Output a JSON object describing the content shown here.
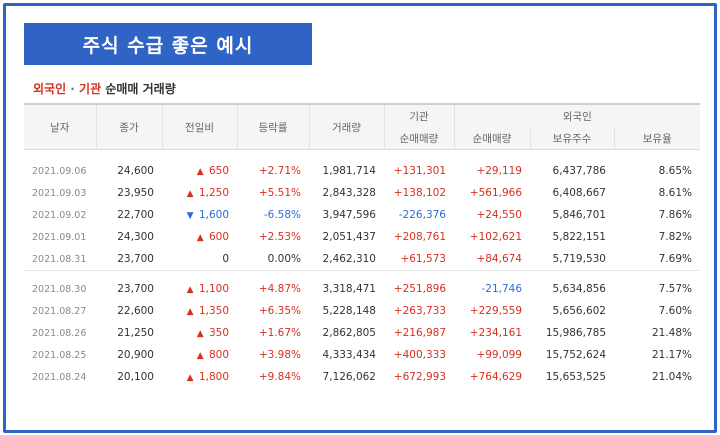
{
  "banner": {
    "title": "주식 수급 좋은 예시"
  },
  "subtitle": {
    "foreigner": "외국인",
    "separator": " · ",
    "institution": "기관",
    "rest": " 순매매 거래량"
  },
  "table": {
    "headers": {
      "date": "날자",
      "close": "종가",
      "change": "전일비",
      "rate": "등락률",
      "volume": "거래량",
      "institution": "기관",
      "foreigner": "외국인",
      "inst_net": "순매매량",
      "for_net": "순매매량",
      "for_hold": "보유주수",
      "for_ratio": "보유율"
    },
    "group1": [
      {
        "date": "2021.09.06",
        "close": "24,600",
        "dir": "up",
        "change": "650",
        "rate": "+2.71%",
        "volume": "1,981,714",
        "inst": "+131,301",
        "inst_dir": "up",
        "for": "+29,119",
        "for_dir": "up",
        "hold": "6,437,786",
        "ratio": "8.65%"
      },
      {
        "date": "2021.09.03",
        "close": "23,950",
        "dir": "up",
        "change": "1,250",
        "rate": "+5.51%",
        "volume": "2,843,328",
        "inst": "+138,102",
        "inst_dir": "up",
        "for": "+561,966",
        "for_dir": "up",
        "hold": "6,408,667",
        "ratio": "8.61%"
      },
      {
        "date": "2021.09.02",
        "close": "22,700",
        "dir": "down",
        "change": "1,600",
        "rate": "-6.58%",
        "volume": "3,947,596",
        "inst": "-226,376",
        "inst_dir": "down",
        "for": "+24,550",
        "for_dir": "up",
        "hold": "5,846,701",
        "ratio": "7.86%"
      },
      {
        "date": "2021.09.01",
        "close": "24,300",
        "dir": "up",
        "change": "600",
        "rate": "+2.53%",
        "volume": "2,051,437",
        "inst": "+208,761",
        "inst_dir": "up",
        "for": "+102,621",
        "for_dir": "up",
        "hold": "5,822,151",
        "ratio": "7.82%"
      },
      {
        "date": "2021.08.31",
        "close": "23,700",
        "dir": "none",
        "change": "0",
        "rate": "0.00%",
        "volume": "2,462,310",
        "inst": "+61,573",
        "inst_dir": "up",
        "for": "+84,674",
        "for_dir": "up",
        "hold": "5,719,530",
        "ratio": "7.69%"
      }
    ],
    "group2": [
      {
        "date": "2021.08.30",
        "close": "23,700",
        "dir": "up",
        "change": "1,100",
        "rate": "+4.87%",
        "volume": "3,318,471",
        "inst": "+251,896",
        "inst_dir": "up",
        "for": "-21,746",
        "for_dir": "down",
        "hold": "5,634,856",
        "ratio": "7.57%"
      },
      {
        "date": "2021.08.27",
        "close": "22,600",
        "dir": "up",
        "change": "1,350",
        "rate": "+6.35%",
        "volume": "5,228,148",
        "inst": "+263,733",
        "inst_dir": "up",
        "for": "+229,559",
        "for_dir": "up",
        "hold": "5,656,602",
        "ratio": "7.60%"
      },
      {
        "date": "2021.08.26",
        "close": "21,250",
        "dir": "up",
        "change": "350",
        "rate": "+1.67%",
        "volume": "2,862,805",
        "inst": "+216,987",
        "inst_dir": "up",
        "for": "+234,161",
        "for_dir": "up",
        "hold": "15,986,785",
        "ratio": "21.48%"
      },
      {
        "date": "2021.08.25",
        "close": "20,900",
        "dir": "up",
        "change": "800",
        "rate": "+3.98%",
        "volume": "4,333,434",
        "inst": "+400,333",
        "inst_dir": "up",
        "for": "+99,099",
        "for_dir": "up",
        "hold": "15,752,624",
        "ratio": "21.17%"
      },
      {
        "date": "2021.08.24",
        "close": "20,100",
        "dir": "up",
        "change": "1,800",
        "rate": "+9.84%",
        "volume": "7,126,062",
        "inst": "+672,993",
        "inst_dir": "up",
        "for": "+764,629",
        "for_dir": "up",
        "hold": "15,653,525",
        "ratio": "21.04%"
      }
    ]
  },
  "colors": {
    "accent": "#2f63c6",
    "up": "#d6301f",
    "down": "#2b6ed1"
  },
  "icons": {
    "up": "triangle-up-icon",
    "down": "triangle-down-icon"
  }
}
